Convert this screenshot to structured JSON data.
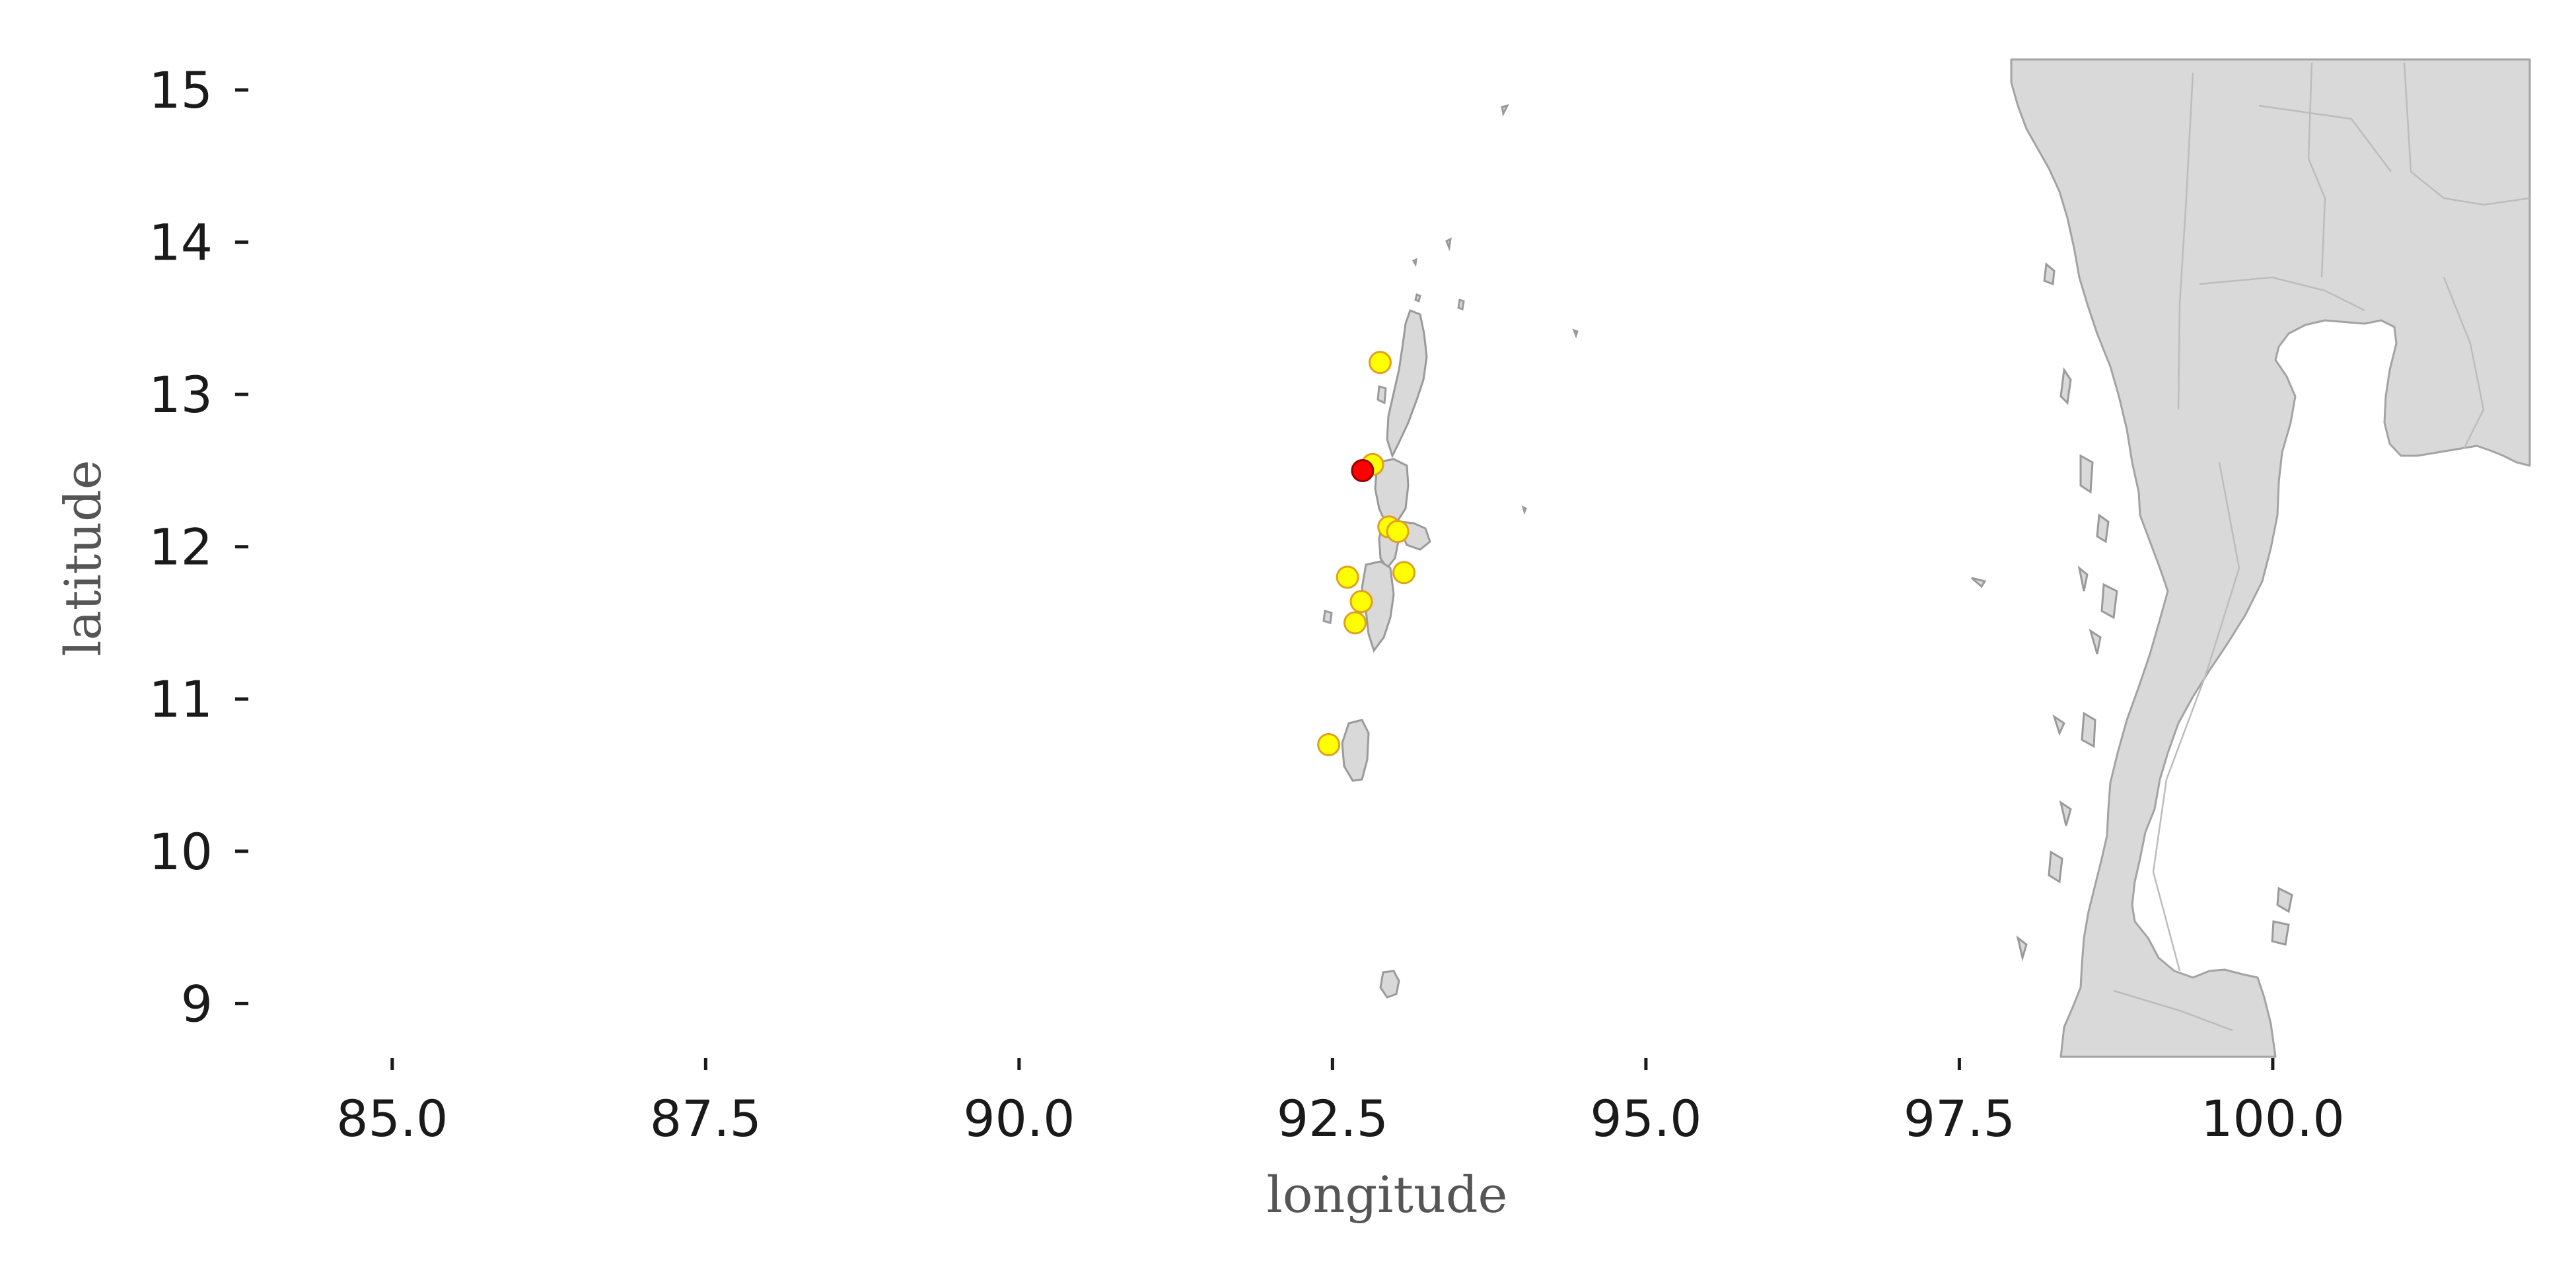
{
  "map": {
    "x_label": "longitude",
    "y_label": "latitude",
    "xlim": [
      83.9,
      102.05
    ],
    "ylim": [
      8.65,
      15.2
    ],
    "x_ticks": [
      85.0,
      87.5,
      90.0,
      92.5,
      95.0,
      97.5,
      100.0
    ],
    "x_tick_labels": [
      "85.0",
      "87.5",
      "90.0",
      "92.5",
      "95.0",
      "97.5",
      "100.0"
    ],
    "y_ticks": [
      9,
      10,
      11,
      12,
      13,
      14,
      15
    ],
    "y_tick_labels": [
      "9",
      "10",
      "11",
      "12",
      "13",
      "14",
      "15"
    ],
    "colors": {
      "land": "#d9d9d9",
      "coastline": "#a3a3a3",
      "marker_yellow": "#ffff00",
      "marker_yellow_edge": "#e0a020",
      "marker_red": "#ff0000",
      "marker_red_edge": "#990000"
    },
    "markers": [
      {
        "lon": 92.88,
        "lat": 13.21,
        "color": "yellow"
      },
      {
        "lon": 92.82,
        "lat": 12.54,
        "color": "yellow"
      },
      {
        "lon": 92.95,
        "lat": 12.13,
        "color": "yellow"
      },
      {
        "lon": 93.02,
        "lat": 12.1,
        "color": "yellow"
      },
      {
        "lon": 93.07,
        "lat": 11.83,
        "color": "yellow"
      },
      {
        "lon": 92.62,
        "lat": 11.8,
        "color": "yellow"
      },
      {
        "lon": 92.73,
        "lat": 11.64,
        "color": "yellow"
      },
      {
        "lon": 92.68,
        "lat": 11.5,
        "color": "yellow"
      },
      {
        "lon": 92.47,
        "lat": 10.7,
        "color": "yellow"
      },
      {
        "lon": 92.74,
        "lat": 12.5,
        "color": "red"
      }
    ]
  }
}
